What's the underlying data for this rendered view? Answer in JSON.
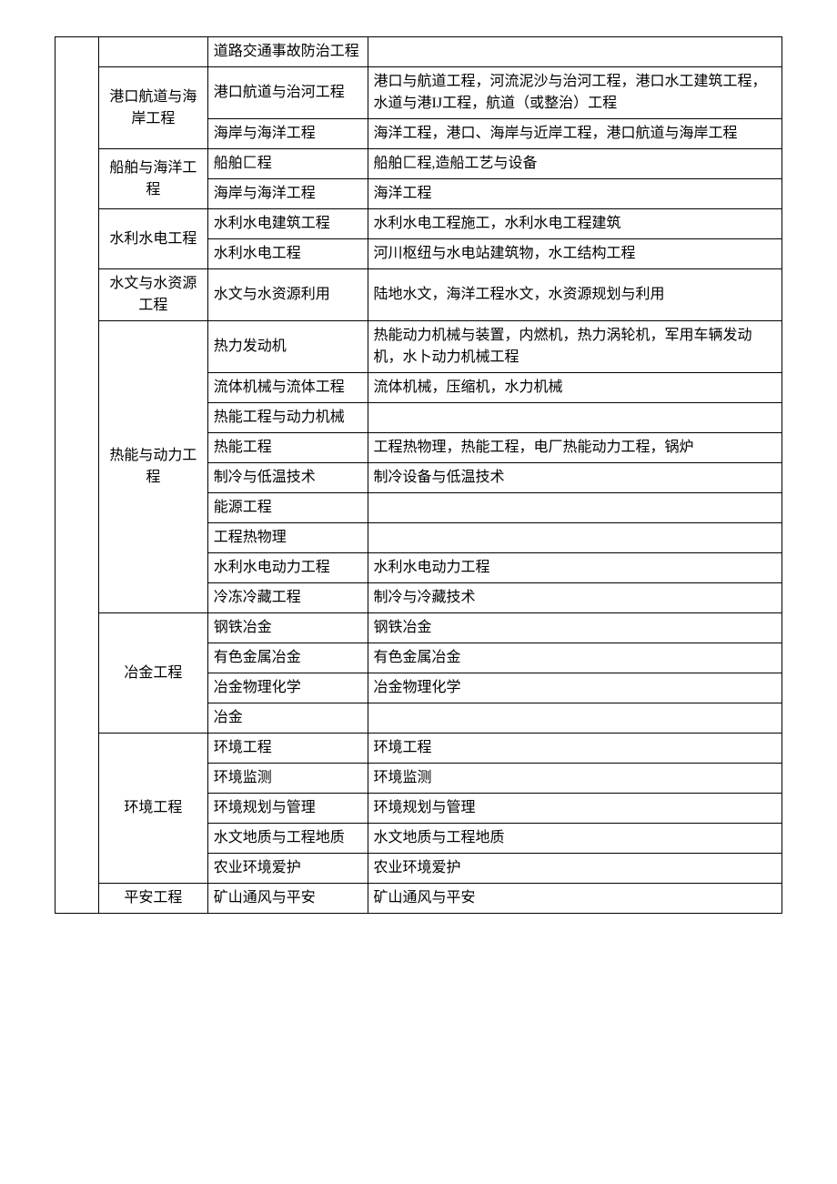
{
  "rows": [
    {
      "col1": null,
      "col1_rowspan": 0,
      "col2": "",
      "col2_rowspan": 1,
      "col3": "道路交通事故防治工程",
      "col4": ""
    },
    {
      "col1": null,
      "col1_rowspan": 0,
      "col2": "港口航道与海岸工程",
      "col2_rowspan": 2,
      "col2_class": "center",
      "col3": "港口航道与治河工程",
      "col4": "港口与航道工程，河流泥沙与治河工程，港口水工建筑工程，水道与港IJ工程，航道（或整治）工程"
    },
    {
      "col1": null,
      "col1_rowspan": 0,
      "col2": null,
      "col2_rowspan": 0,
      "col3": "海岸与海洋工程",
      "col4": "海洋工程，港口、海岸与近岸工程，港口航道与海岸工程"
    },
    {
      "col1": null,
      "col1_rowspan": 0,
      "col2": "船舶与海洋工程",
      "col2_rowspan": 2,
      "col2_class": "center",
      "col3": "船舶匚程",
      "col4": "船舶匚程,造船工艺与设备"
    },
    {
      "col1": null,
      "col1_rowspan": 0,
      "col2": null,
      "col2_rowspan": 0,
      "col3": "海岸与海洋工程",
      "col4": "海洋工程"
    },
    {
      "col1": null,
      "col1_rowspan": 0,
      "col2": "水利水电工程",
      "col2_rowspan": 2,
      "col2_class": "center",
      "col3": "水利水电建筑工程",
      "col4": "水利水电工程施工，水利水电工程建筑"
    },
    {
      "col1": null,
      "col1_rowspan": 0,
      "col2": null,
      "col2_rowspan": 0,
      "col3": "水利水电工程",
      "col4": "河川枢纽与水电站建筑物，水工结构工程"
    },
    {
      "col1": null,
      "col1_rowspan": 0,
      "col2": "水文与水资源工程",
      "col2_rowspan": 1,
      "col2_class": "center",
      "col3": "水文与水资源利用",
      "col4": "陆地水文，海洋工程水文，水资源规划与利用"
    },
    {
      "col1": null,
      "col1_rowspan": 0,
      "col2": "热能与动力工程",
      "col2_rowspan": 9,
      "col2_class": "center",
      "col3": "热力发动机",
      "col4": "热能动力机械与装置，内燃机，热力涡轮机，军用车辆发动机，水卜动力机械工程"
    },
    {
      "col1": null,
      "col1_rowspan": 0,
      "col2": null,
      "col2_rowspan": 0,
      "col3": "流体机械与流体工程",
      "col4": "流体机械，压缩机，水力机械"
    },
    {
      "col1": null,
      "col1_rowspan": 0,
      "col2": null,
      "col2_rowspan": 0,
      "col3": "热能工程与动力机械",
      "col4": ""
    },
    {
      "col1": null,
      "col1_rowspan": 0,
      "col2": null,
      "col2_rowspan": 0,
      "col3": "热能工程",
      "col4": "工程热物理，热能工程，电厂热能动力工程，锅炉"
    },
    {
      "col1": null,
      "col1_rowspan": 0,
      "col2": null,
      "col2_rowspan": 0,
      "col3": "制冷与低温技术",
      "col4": "制冷设备与低温技术"
    },
    {
      "col1": null,
      "col1_rowspan": 0,
      "col2": null,
      "col2_rowspan": 0,
      "col3": "能源工程",
      "col4": ""
    },
    {
      "col1": null,
      "col1_rowspan": 0,
      "col2": null,
      "col2_rowspan": 0,
      "col3": "工程热物理",
      "col4": ""
    },
    {
      "col1": null,
      "col1_rowspan": 0,
      "col2": null,
      "col2_rowspan": 0,
      "col3": "水利水电动力工程",
      "col4": "水利水电动力工程"
    },
    {
      "col1": null,
      "col1_rowspan": 0,
      "col2": null,
      "col2_rowspan": 0,
      "col3": "冷冻冷藏工程",
      "col4": "制冷与冷藏技术"
    },
    {
      "col1": null,
      "col1_rowspan": 0,
      "col2": "冶金工程",
      "col2_rowspan": 4,
      "col2_class": "center",
      "col3": "钢铁冶金",
      "col4": "钢铁冶金"
    },
    {
      "col1": null,
      "col1_rowspan": 0,
      "col2": null,
      "col2_rowspan": 0,
      "col3": "有色金属冶金",
      "col4": "有色金属冶金"
    },
    {
      "col1": null,
      "col1_rowspan": 0,
      "col2": null,
      "col2_rowspan": 0,
      "col3": "冶金物理化学",
      "col4": "冶金物理化学"
    },
    {
      "col1": null,
      "col1_rowspan": 0,
      "col2": null,
      "col2_rowspan": 0,
      "col3": "冶金",
      "col4": ""
    },
    {
      "col1": null,
      "col1_rowspan": 0,
      "col2": "环境工程",
      "col2_rowspan": 5,
      "col2_class": "center",
      "col3": "环境工程",
      "col4": "环境工程"
    },
    {
      "col1": null,
      "col1_rowspan": 0,
      "col2": null,
      "col2_rowspan": 0,
      "col3": "环境监测",
      "col4": "环境监测"
    },
    {
      "col1": null,
      "col1_rowspan": 0,
      "col2": null,
      "col2_rowspan": 0,
      "col3": "环境规划与管理",
      "col4": "环境规划与管理"
    },
    {
      "col1": null,
      "col1_rowspan": 0,
      "col2": null,
      "col2_rowspan": 0,
      "col3": "水文地质与工程地质",
      "col4": "水文地质与工程地质"
    },
    {
      "col1": null,
      "col1_rowspan": 0,
      "col2": null,
      "col2_rowspan": 0,
      "col3": "农业环境爱护",
      "col4": "农业环境爱护"
    },
    {
      "col1": null,
      "col1_rowspan": 0,
      "col2": "平安工程",
      "col2_rowspan": 1,
      "col2_class": "center",
      "col3": "矿山通风与平安",
      "col4": "矿山通风与平安"
    }
  ],
  "col1_total_rowspan": 27
}
